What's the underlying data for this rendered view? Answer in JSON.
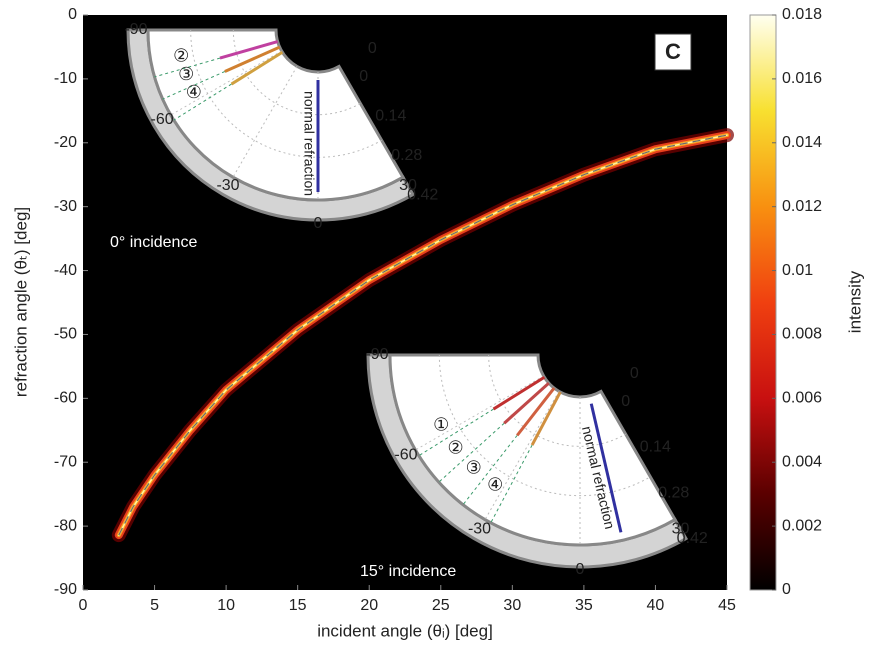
{
  "chart_data": {
    "type": "line",
    "x_label": "incident angle (θᵢ) [deg]",
    "y_label": "refraction angle (θₜ) [deg]",
    "panel_label": "C",
    "x": [
      2.5,
      3.5,
      5,
      7.5,
      10,
      15,
      20,
      25,
      30,
      35,
      40,
      45
    ],
    "values": [
      -81.4,
      -77,
      -72,
      -65,
      -58.7,
      -49.3,
      -41.5,
      -35.2,
      -29.7,
      -25,
      -21,
      -18.8
    ],
    "color": "#e8401c",
    "xlim": [
      0,
      45
    ],
    "xticks": [
      0,
      5,
      10,
      15,
      20,
      25,
      30,
      35,
      40,
      45
    ],
    "ylim": [
      -90,
      0
    ],
    "yticks": [
      0,
      -10,
      -20,
      -30,
      -40,
      -50,
      -60,
      -70,
      -80,
      -90
    ],
    "colorbar": {
      "label": "intensity",
      "lim": [
        0,
        0.018
      ],
      "ticks": [
        0,
        0.002,
        0.004,
        0.006,
        0.008,
        0.01,
        0.012,
        0.014,
        0.016,
        0.018
      ],
      "colors": [
        "#000000",
        "#5a0000",
        "#c81010",
        "#f04010",
        "#f89010",
        "#f8e030",
        "#fffff0"
      ]
    },
    "insets": [
      {
        "caption": "0° incidence",
        "thetaticks": [
          -90,
          -60,
          -30,
          0,
          30
        ],
        "theta_bottom_label": "0",
        "rticks": [
          0,
          0.14,
          0.28,
          0.42
        ],
        "ray_label": "normal refraction",
        "ray_markers": [
          "②",
          "③",
          "④"
        ]
      },
      {
        "caption": "15° incidence",
        "thetaticks": [
          -90,
          -60,
          -30,
          0,
          30
        ],
        "theta_bottom_label": "0",
        "rticks": [
          0,
          0.14,
          0.28,
          0.42
        ],
        "ray_label": "normal refraction",
        "ray_markers": [
          "①",
          "②",
          "③",
          "④"
        ]
      }
    ]
  }
}
